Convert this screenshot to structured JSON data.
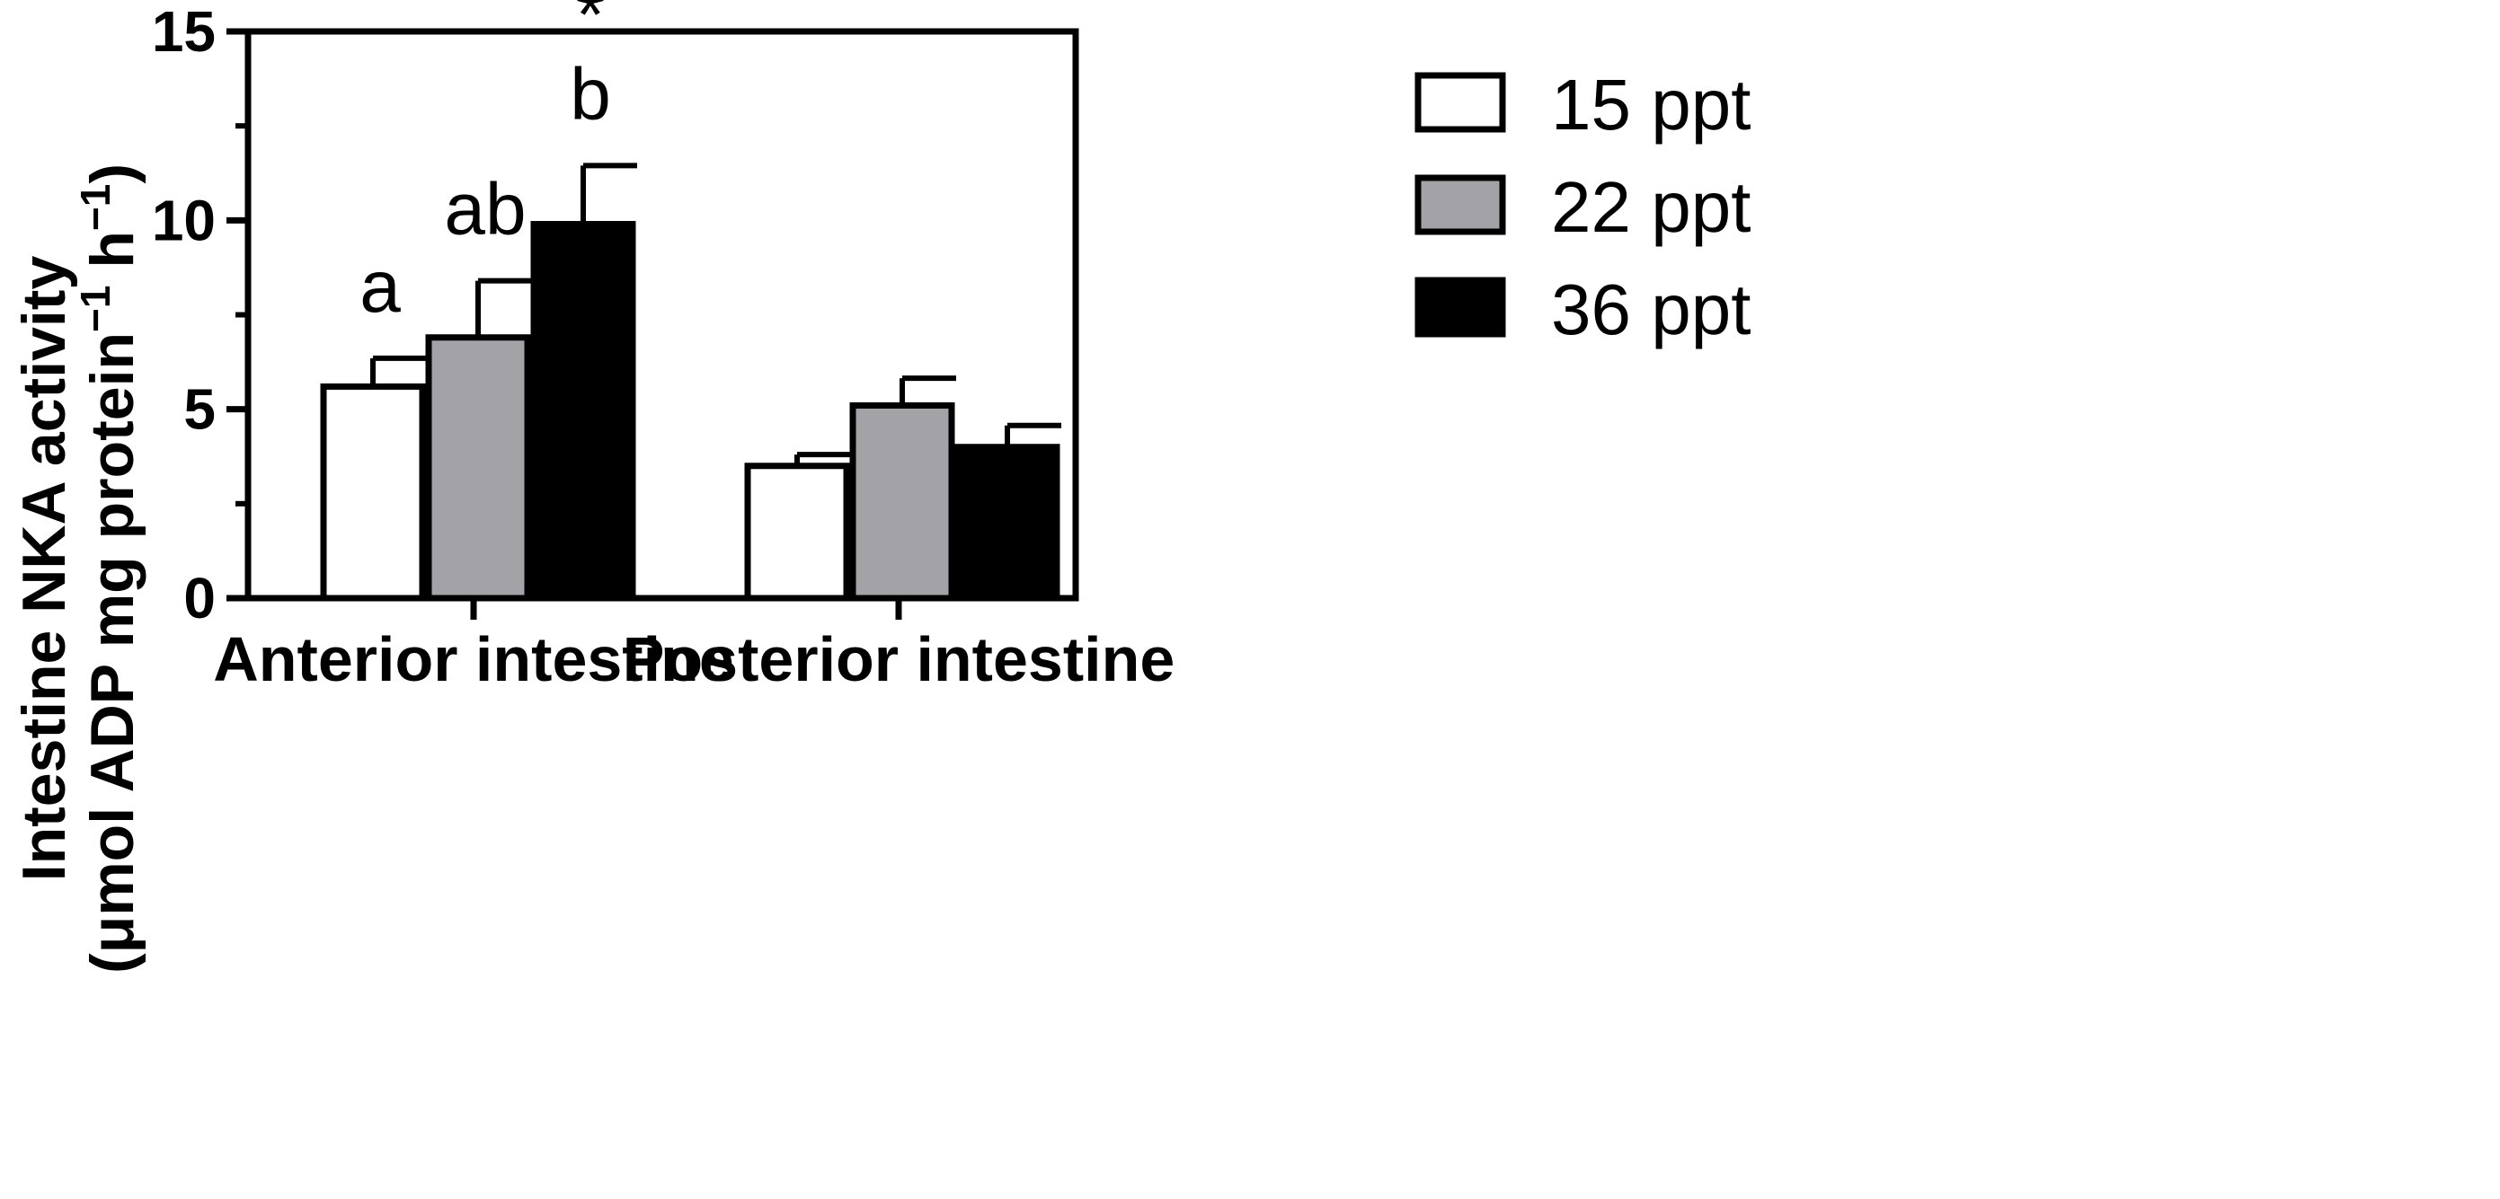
{
  "chart_data": {
    "type": "bar",
    "title": "",
    "xlabel": "",
    "ylabel_line1": "Intestine NKA activity",
    "ylabel_line2": {
      "part1": "(μmol ADP mg protein",
      "sup1": "−1",
      "part2": " h",
      "sup2": "−1",
      "part3": ")"
    },
    "ylim": [
      0,
      15
    ],
    "yticks": [
      0,
      5,
      10,
      15
    ],
    "yticks_minor": [
      2.5,
      7.5,
      12.5
    ],
    "ytick_labels": [
      "0",
      "5",
      "10",
      "15"
    ],
    "categories": [
      "Anterior intestine",
      "Posterior intestine"
    ],
    "series": [
      {
        "name": "15 ppt",
        "color": "#ffffff",
        "values": [
          5.6,
          3.5
        ],
        "errors": [
          0.75,
          0.3
        ]
      },
      {
        "name": "22 ppt",
        "color": "#a3a2a7",
        "values": [
          6.9,
          5.1
        ],
        "errors": [
          1.5,
          0.72
        ]
      },
      {
        "name": "36 ppt",
        "color": "#000000",
        "values": [
          9.9,
          4.0
        ],
        "errors": [
          1.55,
          0.57
        ]
      }
    ],
    "annotations": [
      {
        "text": "a",
        "category": 0,
        "series": 0
      },
      {
        "text": "ab",
        "category": 0,
        "series": 1
      },
      {
        "text": "b",
        "category": 0,
        "series": 2
      },
      {
        "text": "*",
        "category": 0,
        "series": 2
      }
    ],
    "legend_position": "right"
  }
}
